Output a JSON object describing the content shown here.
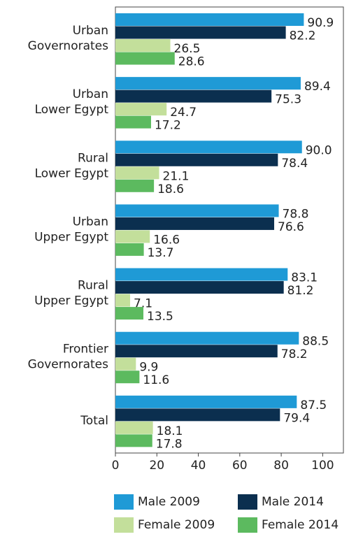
{
  "chart_data": {
    "type": "hbar",
    "categories": [
      "Urban Governorates",
      "Urban Lower Egypt",
      "Rural Lower Egypt",
      "Urban Upper Egypt",
      "Rural Upper Egypt",
      "Frontier Governorates",
      "Total"
    ],
    "series": [
      {
        "name": "Male 2009",
        "color": "#1f9ad6",
        "values": [
          90.9,
          89.4,
          90.0,
          78.8,
          83.1,
          88.5,
          87.5
        ],
        "value_labels": [
          "90.9",
          "89.4",
          "90.0",
          "78.8",
          "83.1",
          "88.5",
          "87.5"
        ]
      },
      {
        "name": "Male 2014",
        "color": "#0b2f4f",
        "values": [
          82.2,
          75.3,
          78.4,
          76.6,
          81.2,
          78.2,
          79.4
        ],
        "value_labels": [
          "82.2",
          "75.3",
          "78.4",
          "76.6",
          "81.2",
          "78.2",
          "79.4"
        ]
      },
      {
        "name": "Female 2009",
        "color": "#c3df9b",
        "values": [
          26.5,
          24.7,
          21.1,
          16.6,
          7.1,
          9.9,
          18.1
        ],
        "value_labels": [
          "26.5",
          "24.7",
          "21.1",
          "16.6",
          "7.1",
          "9.9",
          "18.1"
        ]
      },
      {
        "name": "Female 2014",
        "color": "#5cba5f",
        "values": [
          28.6,
          17.2,
          18.6,
          13.7,
          13.5,
          11.6,
          17.8
        ],
        "value_labels": [
          "28.6",
          "17.2",
          "18.6",
          "13.7",
          "13.5",
          "11.6",
          "17.8"
        ]
      }
    ],
    "xlim": [
      0,
      110
    ],
    "xticks": [
      0,
      20,
      40,
      60,
      80,
      100
    ]
  }
}
